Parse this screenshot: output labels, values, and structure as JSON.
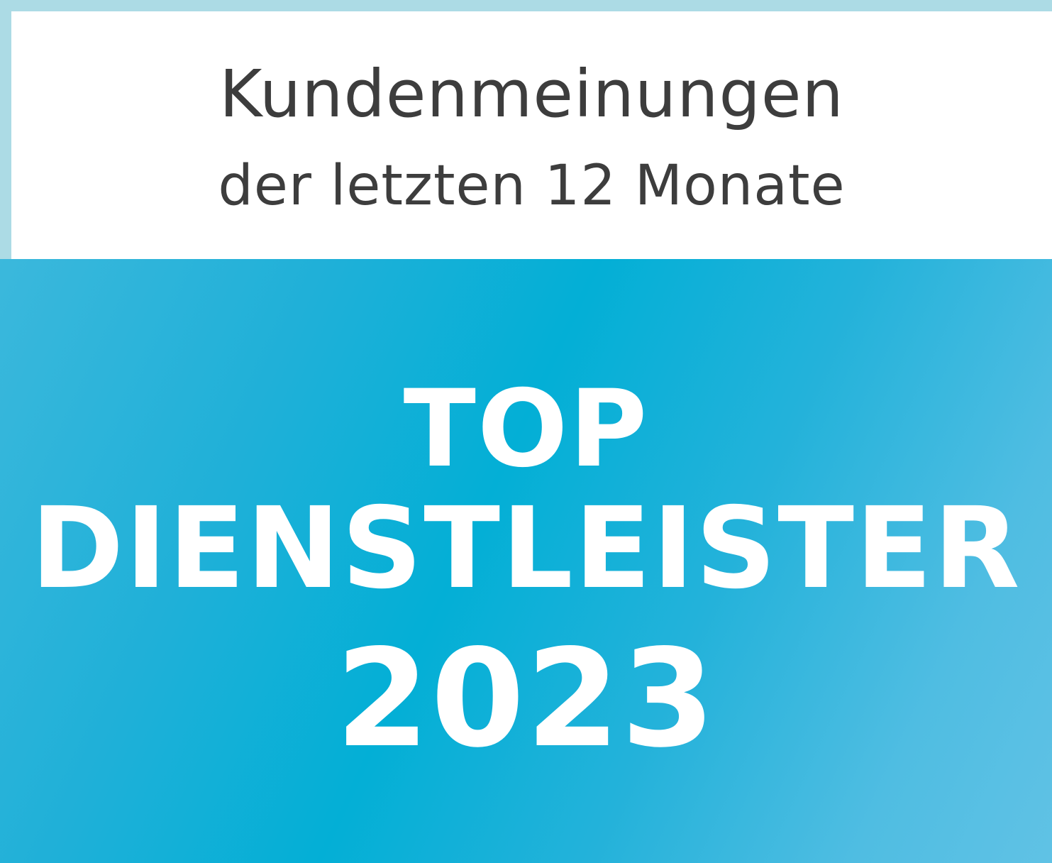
{
  "header": {
    "line1": "Kundenmeinungen",
    "line2": "der letzten 12 Monate"
  },
  "badge": {
    "line1": "TOP",
    "line2": "DIENSTLEISTER",
    "year": "2023"
  },
  "colors": {
    "border": "#acdbe5",
    "accent": "#03afd6",
    "text": "#3d3d3d"
  }
}
